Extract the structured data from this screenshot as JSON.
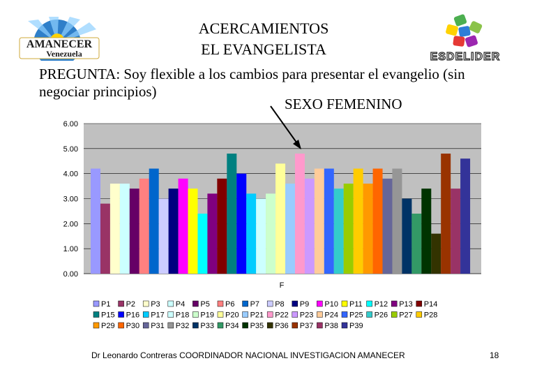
{
  "header": {
    "title_line1": "ACERCAMIENTOS",
    "title_line2": "EL EVANGELISTA",
    "logo_left_text1": "AMANECER",
    "logo_left_text2": "Venezuela",
    "logo_right_text": "ESDELIDER"
  },
  "question": "PREGUNTA: Soy flexible a los cambios para presentar el evangelio (sin negociar principios)",
  "subtitle": "SEXO FEMENINO",
  "footer": {
    "credit": "Dr Leonardo Contreras  COORDINADOR NACIONAL INVESTIGACION AMANECER",
    "page": "18"
  },
  "chart_data": {
    "type": "bar",
    "categories": [
      "F"
    ],
    "xlabel": "F",
    "ylim": [
      0,
      6
    ],
    "yticks": [
      "0.00",
      "1.00",
      "2.00",
      "3.00",
      "4.00",
      "5.00",
      "6.00"
    ],
    "grid": true,
    "legend_position": "bottom",
    "series": [
      {
        "name": "P1",
        "color": "#9999ff",
        "values": [
          4.2
        ]
      },
      {
        "name": "P2",
        "color": "#993366",
        "values": [
          2.8
        ]
      },
      {
        "name": "P3",
        "color": "#ffffcc",
        "values": [
          3.6
        ]
      },
      {
        "name": "P4",
        "color": "#ccffff",
        "values": [
          3.6
        ]
      },
      {
        "name": "P5",
        "color": "#660066",
        "values": [
          3.4
        ]
      },
      {
        "name": "P6",
        "color": "#ff8080",
        "values": [
          3.8
        ]
      },
      {
        "name": "P7",
        "color": "#0066cc",
        "values": [
          4.2
        ]
      },
      {
        "name": "P8",
        "color": "#ccccff",
        "values": [
          3.0
        ]
      },
      {
        "name": "P9",
        "color": "#000080",
        "values": [
          3.4
        ]
      },
      {
        "name": "P10",
        "color": "#ff00ff",
        "values": [
          3.8
        ]
      },
      {
        "name": "P11",
        "color": "#ffff00",
        "values": [
          3.4
        ]
      },
      {
        "name": "P12",
        "color": "#00ffff",
        "values": [
          2.4
        ]
      },
      {
        "name": "P13",
        "color": "#800080",
        "values": [
          3.2
        ]
      },
      {
        "name": "P14",
        "color": "#800000",
        "values": [
          3.8
        ]
      },
      {
        "name": "P15",
        "color": "#008080",
        "values": [
          4.8
        ]
      },
      {
        "name": "P16",
        "color": "#0000ff",
        "values": [
          4.0
        ]
      },
      {
        "name": "P17",
        "color": "#00ccff",
        "values": [
          3.2
        ]
      },
      {
        "name": "P18",
        "color": "#ccffff",
        "values": [
          3.0
        ]
      },
      {
        "name": "P19",
        "color": "#ccffcc",
        "values": [
          3.2
        ]
      },
      {
        "name": "P20",
        "color": "#ffff99",
        "values": [
          4.4
        ]
      },
      {
        "name": "P21",
        "color": "#99ccff",
        "values": [
          3.6
        ]
      },
      {
        "name": "P22",
        "color": "#ff99cc",
        "values": [
          4.8
        ]
      },
      {
        "name": "P23",
        "color": "#cc99ff",
        "values": [
          3.8
        ]
      },
      {
        "name": "P24",
        "color": "#ffcc99",
        "values": [
          4.2
        ]
      },
      {
        "name": "P25",
        "color": "#3366ff",
        "values": [
          4.2
        ]
      },
      {
        "name": "P26",
        "color": "#33cccc",
        "values": [
          3.4
        ]
      },
      {
        "name": "P27",
        "color": "#99cc00",
        "values": [
          3.6
        ]
      },
      {
        "name": "P28",
        "color": "#ffcc00",
        "values": [
          4.2
        ]
      },
      {
        "name": "P29",
        "color": "#ff9900",
        "values": [
          3.6
        ]
      },
      {
        "name": "P30",
        "color": "#ff6600",
        "values": [
          4.2
        ]
      },
      {
        "name": "P31",
        "color": "#666699",
        "values": [
          3.8
        ]
      },
      {
        "name": "P32",
        "color": "#969696",
        "values": [
          4.2
        ]
      },
      {
        "name": "P33",
        "color": "#003366",
        "values": [
          3.0
        ]
      },
      {
        "name": "P34",
        "color": "#339966",
        "values": [
          2.4
        ]
      },
      {
        "name": "P35",
        "color": "#003300",
        "values": [
          3.4
        ]
      },
      {
        "name": "P36",
        "color": "#333300",
        "values": [
          1.6
        ]
      },
      {
        "name": "P37",
        "color": "#993300",
        "values": [
          4.8
        ]
      },
      {
        "name": "P38",
        "color": "#993366",
        "values": [
          3.4
        ]
      },
      {
        "name": "P39",
        "color": "#333399",
        "values": [
          4.6
        ]
      }
    ]
  }
}
